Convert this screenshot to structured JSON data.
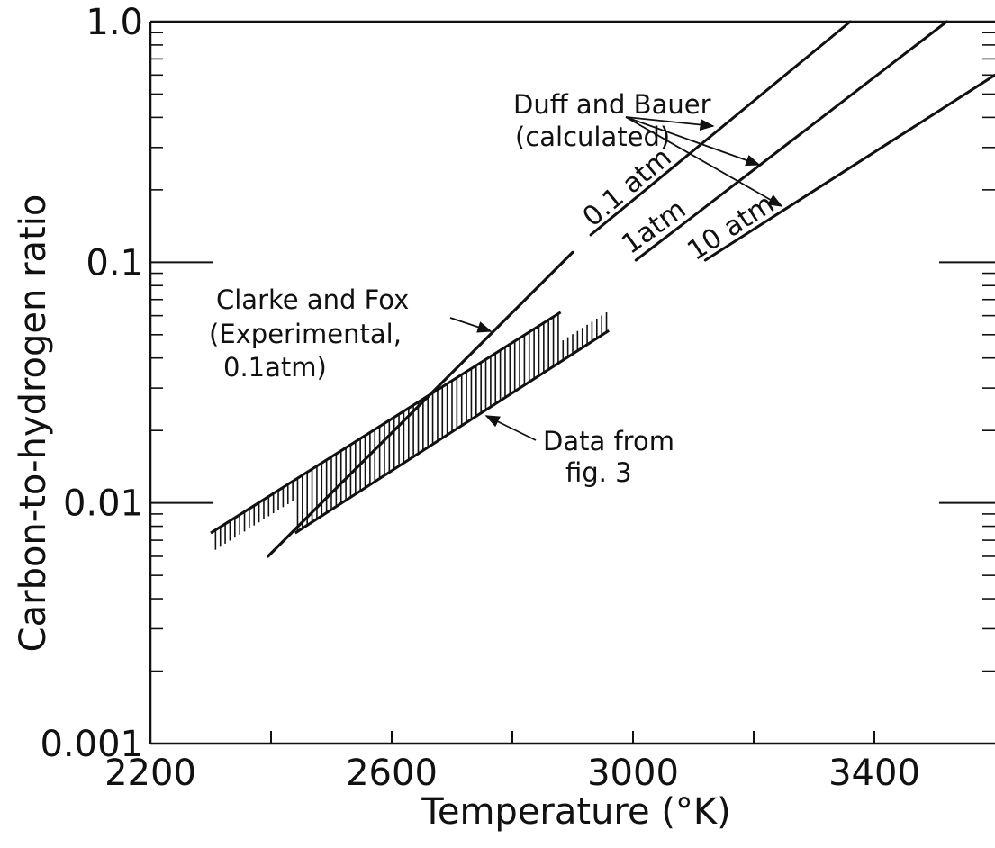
{
  "chart_data": {
    "type": "line",
    "xlabel": "Temperature (°K)",
    "ylabel": "Carbon-to-hydrogen ratio",
    "xlim": [
      2200,
      3600
    ],
    "ylim": [
      0.001,
      1.0
    ],
    "yscale": "log",
    "x_ticks": [
      2200,
      2600,
      3000,
      3400
    ],
    "x_tick_labels": [
      "2200",
      "2600",
      "3000",
      "3400"
    ],
    "y_ticks": [
      0.001,
      0.01,
      0.1,
      1.0
    ],
    "y_tick_labels": [
      "0.001",
      "0.01",
      "0.1",
      "1.0"
    ],
    "grid": false,
    "series": [
      {
        "name": "Clarke and Fox (Experimental, 0.1atm)",
        "x": [
          2395,
          2900
        ],
        "y": [
          0.006,
          0.11
        ]
      },
      {
        "name": "0.1 atm",
        "x": [
          2930,
          3360
        ],
        "y": [
          0.13,
          1.0
        ]
      },
      {
        "name": "1atm",
        "x": [
          3005,
          3520
        ],
        "y": [
          0.102,
          1.0
        ]
      },
      {
        "name": "10 atm",
        "x": [
          3120,
          3600
        ],
        "y": [
          0.102,
          0.6
        ]
      }
    ],
    "band": {
      "name": "Data from fig. 3",
      "upper": {
        "x": [
          2300,
          2880
        ],
        "y": [
          0.0075,
          0.062
        ]
      },
      "lower": {
        "x": [
          2440,
          2960
        ],
        "y": [
          0.0075,
          0.052
        ]
      }
    },
    "annotations": {
      "duff_bauer_line1": "Duff and Bauer",
      "duff_bauer_line2": "(calculated)",
      "clarke_fox_line1": "Clarke and Fox",
      "clarke_fox_line2": "(Experimental,",
      "clarke_fox_line3": "0.1atm)",
      "data_fig_line1": "Data from",
      "data_fig_line2": "fig. 3",
      "label_01atm": "0.1 atm",
      "label_1atm": "1atm",
      "label_10atm": "10 atm"
    }
  }
}
